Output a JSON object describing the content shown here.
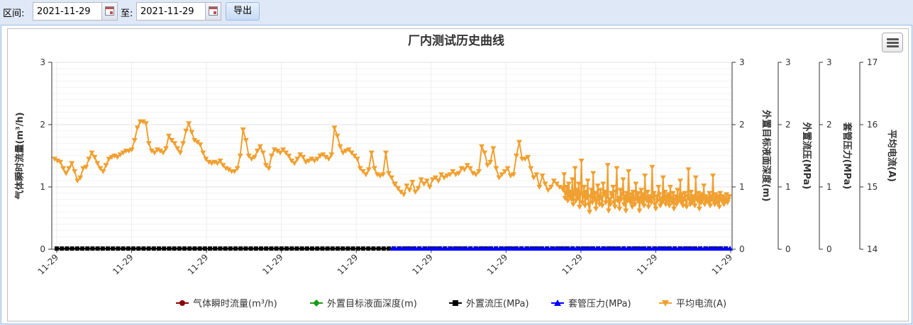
{
  "toolbar": {
    "range_label": "区间:",
    "to_label": "至:",
    "start_date": "2021-11-29",
    "end_date": "2021-11-29",
    "export_label": "导出"
  },
  "chart_data": {
    "type": "line",
    "title": "厂内测试历史曲线",
    "x_tick_labels": [
      "11-29",
      "11-29",
      "11-29",
      "11-29",
      "11-29",
      "11-29",
      "11-29",
      "11-29",
      "11-29",
      "11-29"
    ],
    "y_axes": [
      {
        "label": "气体瞬时流量(m³/h)",
        "side": "left",
        "range": [
          0,
          3
        ],
        "ticks": [
          "0",
          "1",
          "2",
          "3"
        ]
      },
      {
        "label": "外置目标液面深度(m)",
        "side": "right",
        "range": [
          0,
          3
        ],
        "ticks": [
          "0",
          "1",
          "2",
          "3"
        ]
      },
      {
        "label": "外置流压(MPa)",
        "side": "right",
        "range": [
          0,
          3
        ],
        "ticks": [
          "0",
          "1",
          "2",
          "3"
        ]
      },
      {
        "label": "套管压力(MPa)",
        "side": "right",
        "range": [
          0,
          3
        ],
        "ticks": [
          "0",
          "1",
          "2",
          "3"
        ]
      },
      {
        "label": "平均电流(A)",
        "side": "right",
        "range": [
          14,
          17
        ],
        "ticks": [
          "14",
          "15",
          "16",
          "17"
        ]
      }
    ],
    "grid": true,
    "legend_position": "bottom",
    "series": [
      {
        "name": "气体瞬时流量(m³/h)",
        "color": "#8b0000",
        "marker": "circle",
        "level": 0
      },
      {
        "name": "外置目标液面深度(m)",
        "color": "#1a9a1a",
        "marker": "diamond",
        "level": 0
      },
      {
        "name": "外置流压(MPa)",
        "color": "#000000",
        "marker": "square",
        "level": 0
      },
      {
        "name": "套管压力(MPa)",
        "color": "#0000ff",
        "marker": "triangle",
        "level": 0
      },
      {
        "name": "平均电流(A)",
        "color": "#f0a030",
        "marker": "triangle-down",
        "points_early": [
          1.45,
          1.42,
          1.4,
          1.3,
          1.22,
          1.3,
          1.38,
          1.25,
          1.1,
          1.15,
          1.3,
          1.32,
          1.45,
          1.55,
          1.48,
          1.38,
          1.3,
          1.25,
          1.35,
          1.45,
          1.48,
          1.5,
          1.48,
          1.52,
          1.55,
          1.58,
          1.58,
          1.6,
          1.75,
          1.95,
          2.05,
          2.05,
          2.02,
          1.7,
          1.58,
          1.55,
          1.6,
          1.58,
          1.55,
          1.62,
          1.82,
          1.75,
          1.7,
          1.62,
          1.55,
          1.7,
          1.9,
          2.02,
          1.88,
          1.75,
          1.72,
          1.68,
          1.55,
          1.45,
          1.4,
          1.38,
          1.4,
          1.38,
          1.42,
          1.35,
          1.3,
          1.28,
          1.25,
          1.25,
          1.3,
          1.5,
          1.92,
          1.75,
          1.5,
          1.45,
          1.48,
          1.58,
          1.65,
          1.55,
          1.35,
          1.3,
          1.5,
          1.6,
          1.58,
          1.55,
          1.6,
          1.55,
          1.5,
          1.42,
          1.38,
          1.45,
          1.52,
          1.48,
          1.4,
          1.42,
          1.45,
          1.42,
          1.45,
          1.5,
          1.52,
          1.48,
          1.45,
          1.52,
          1.95,
          1.82,
          1.65,
          1.55,
          1.58,
          1.6,
          1.55,
          1.5,
          1.45,
          1.3,
          1.25,
          1.2,
          1.28,
          1.55,
          1.3,
          1.2,
          1.18,
          1.2,
          1.55,
          1.22,
          1.15,
          1.05
        ],
        "points_mid": [
          1.05,
          0.98,
          0.92,
          0.88,
          1.02,
          0.95,
          1.08,
          0.92,
          0.98,
          1.12,
          1.05,
          1.1,
          1.0,
          1.12,
          1.15,
          1.1,
          1.2,
          1.15,
          1.18,
          1.2,
          1.25,
          1.2,
          1.22,
          1.3,
          1.28,
          1.35,
          1.3,
          1.22,
          1.2,
          1.25,
          1.65,
          1.55,
          1.35,
          1.4,
          1.62,
          1.3,
          1.15,
          1.2,
          1.25,
          1.3,
          1.18,
          1.2,
          1.5,
          1.72,
          1.45,
          1.45,
          1.48,
          1.3,
          1.15,
          1.2,
          1.0,
          1.18,
          1.05,
          0.95,
          1.0,
          1.1,
          1.05,
          1.0,
          0.98
        ],
        "points_late": [
          0.95,
          1.2,
          0.82,
          0.9,
          1.0,
          0.78,
          1.05,
          0.85,
          0.92,
          0.8,
          1.12,
          0.72,
          0.88,
          1.3,
          0.78,
          0.95,
          0.82,
          1.05,
          0.68,
          0.9,
          1.42,
          0.75,
          0.85,
          1.0,
          0.7,
          0.92,
          0.82,
          1.1,
          0.72,
          0.6,
          0.85,
          0.95,
          0.75,
          1.22,
          0.82,
          0.9,
          0.65,
          0.78,
          1.02,
          0.85,
          0.72,
          0.95,
          0.82,
          0.7,
          1.05,
          0.88,
          0.92,
          0.75,
          0.85,
          1.35,
          0.62,
          0.8,
          0.72,
          0.9,
          0.85,
          1.0,
          0.75,
          0.68,
          0.92,
          1.3,
          0.78,
          0.82,
          0.65,
          0.95,
          0.8,
          0.88,
          1.12,
          0.72,
          0.85,
          0.62,
          0.9,
          0.78,
          1.25,
          0.82,
          0.75,
          0.88,
          0.68,
          0.92,
          0.8,
          0.72,
          1.05,
          0.85,
          0.78,
          0.9,
          0.62,
          0.82,
          0.95,
          0.75,
          0.88,
          0.7,
          1.18,
          0.82,
          0.78,
          0.92,
          0.68,
          0.85,
          0.8,
          0.75,
          1.32,
          0.82,
          0.9,
          0.72,
          0.65,
          0.85,
          0.78,
          1.0,
          0.88,
          0.7,
          0.82,
          0.75,
          1.15,
          0.8,
          0.92,
          0.72,
          0.85,
          0.78,
          0.88,
          0.7,
          1.0,
          0.82,
          0.75,
          0.9,
          0.65,
          0.8,
          0.85,
          0.72,
          0.95,
          0.78,
          0.82,
          1.1,
          0.75,
          0.88,
          0.7,
          0.82,
          0.9,
          0.78,
          0.68,
          0.85,
          1.28,
          0.8,
          0.72,
          0.92,
          0.75,
          0.85,
          0.8,
          0.7,
          1.15,
          0.82,
          0.78,
          0.9,
          0.65,
          0.85,
          0.75,
          0.88,
          0.8,
          1.02,
          0.72,
          0.85,
          0.78,
          0.82,
          0.75,
          0.9,
          0.7,
          0.85,
          0.8,
          1.18,
          0.78,
          0.72,
          0.88,
          0.82,
          0.75,
          0.85,
          0.68,
          0.9,
          0.8,
          0.78,
          0.85,
          0.72,
          0.82,
          0.78,
          0.88,
          0.75,
          0.8,
          0.85
        ]
      }
    ]
  }
}
